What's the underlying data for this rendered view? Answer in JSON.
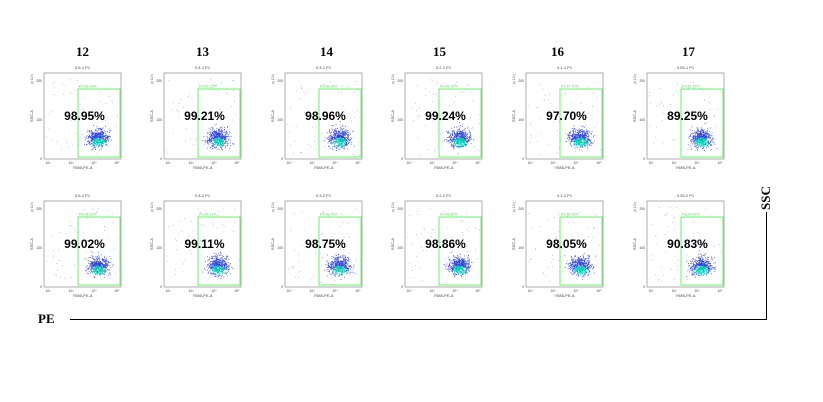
{
  "columns": [
    "12",
    "13",
    "14",
    "15",
    "16",
    "17"
  ],
  "axes": {
    "x_name": "PE",
    "y_name": "SSC"
  },
  "colors": {
    "gate": "#44ee44",
    "dots": "#2a3fd8",
    "hot": "#00c8b0",
    "frame": "#777777"
  },
  "chart_data": [
    {
      "type": "scatter",
      "column": "12",
      "row": 1,
      "title": "0.5-1 P1",
      "gate": "P3:98.95%",
      "percent": "98.95%",
      "value": 98.95,
      "xlabel": "Y585-PE-A",
      "ylabel": "SSC-A",
      "xticks": [
        "10²",
        "10³",
        "10⁴",
        "10⁵"
      ],
      "yticks": [
        "0",
        "100",
        "200"
      ]
    },
    {
      "type": "scatter",
      "column": "13",
      "row": 1,
      "title": "0.4-1 P1",
      "gate": "P3:99.21%",
      "percent": "99.21%",
      "value": 99.21,
      "xlabel": "Y585-PE-A",
      "ylabel": "SSC-A",
      "xticks": [
        "10²",
        "10³",
        "10⁴",
        "10⁵"
      ],
      "yticks": [
        "0",
        "100",
        "200"
      ]
    },
    {
      "type": "scatter",
      "column": "14",
      "row": 1,
      "title": "0.3-1 P1",
      "gate": "P3:98.96%",
      "percent": "98.96%",
      "value": 98.96,
      "xlabel": "Y585-PE-A",
      "ylabel": "SSC-A",
      "xticks": [
        "10²",
        "10³",
        "10⁴",
        "10⁵"
      ],
      "yticks": [
        "0",
        "100",
        "200"
      ]
    },
    {
      "type": "scatter",
      "column": "15",
      "row": 1,
      "title": "0.2-1 P1",
      "gate": "P3:99.24%",
      "percent": "99.24%",
      "value": 99.24,
      "xlabel": "Y585-PE-A",
      "ylabel": "SSC-A",
      "xticks": [
        "10²",
        "10³",
        "10⁴",
        "10⁵"
      ],
      "yticks": [
        "0",
        "100",
        "200"
      ]
    },
    {
      "type": "scatter",
      "column": "16",
      "row": 1,
      "title": "0.1-1 P1",
      "gate": "P3:97.70%",
      "percent": "97.70%",
      "value": 97.7,
      "xlabel": "Y585-PE-A",
      "ylabel": "SSC-A",
      "xticks": [
        "10²",
        "10³",
        "10⁴",
        "10⁵"
      ],
      "yticks": [
        "0",
        "100",
        "200"
      ]
    },
    {
      "type": "scatter",
      "column": "17",
      "row": 1,
      "title": "0.05-1 P1",
      "gate": "P3:89.25%",
      "percent": "89.25%",
      "value": 89.25,
      "xlabel": "Y585-PE-A",
      "ylabel": "SSC-A",
      "xticks": [
        "10²",
        "10³",
        "10⁴",
        "10⁵"
      ],
      "yticks": [
        "0",
        "100",
        "200"
      ]
    },
    {
      "type": "scatter",
      "column": "12",
      "row": 2,
      "title": "0.5-2 P1",
      "gate": "P3:99.02%",
      "percent": "99.02%",
      "value": 99.02,
      "xlabel": "Y585-PE-A",
      "ylabel": "SSC-A",
      "xticks": [
        "10²",
        "10³",
        "10⁴",
        "10⁵"
      ],
      "yticks": [
        "0",
        "100",
        "200"
      ]
    },
    {
      "type": "scatter",
      "column": "13",
      "row": 2,
      "title": "0.4-2 P1",
      "gate": "P3:99.11%",
      "percent": "99.11%",
      "value": 99.11,
      "xlabel": "Y585-PE-A",
      "ylabel": "SSC-A",
      "xticks": [
        "10²",
        "10³",
        "10⁴",
        "10⁵"
      ],
      "yticks": [
        "0",
        "100",
        "200"
      ]
    },
    {
      "type": "scatter",
      "column": "14",
      "row": 2,
      "title": "0.3-2 P1",
      "gate": "P3:98.75%",
      "percent": "98.75%",
      "value": 98.75,
      "xlabel": "Y585-PE-A",
      "ylabel": "SSC-A",
      "xticks": [
        "10²",
        "10³",
        "10⁴",
        "10⁵"
      ],
      "yticks": [
        "0",
        "100",
        "200"
      ]
    },
    {
      "type": "scatter",
      "column": "15",
      "row": 2,
      "title": "0.2-2 P1",
      "gate": "P3:98.86%",
      "percent": "98.86%",
      "value": 98.86,
      "xlabel": "Y585-PE-A",
      "ylabel": "SSC-A",
      "xticks": [
        "10²",
        "10³",
        "10⁴",
        "10⁵"
      ],
      "yticks": [
        "0",
        "100",
        "200"
      ]
    },
    {
      "type": "scatter",
      "column": "16",
      "row": 2,
      "title": "0.1-2 P1",
      "gate": "P3:98.05%",
      "percent": "98.05%",
      "value": 98.05,
      "xlabel": "Y585-PE-A",
      "ylabel": "SSC-A",
      "xticks": [
        "10²",
        "10³",
        "10⁴",
        "10⁵"
      ],
      "yticks": [
        "0",
        "100",
        "200"
      ]
    },
    {
      "type": "scatter",
      "column": "17",
      "row": 2,
      "title": "0.05-2 P1",
      "gate": "P3:90.83%",
      "percent": "90.83%",
      "value": 90.83,
      "xlabel": "Y585-PE-A",
      "ylabel": "SSC-A",
      "xticks": [
        "10²",
        "10³",
        "10⁴",
        "10⁵"
      ],
      "yticks": [
        "0",
        "100",
        "200"
      ]
    }
  ]
}
